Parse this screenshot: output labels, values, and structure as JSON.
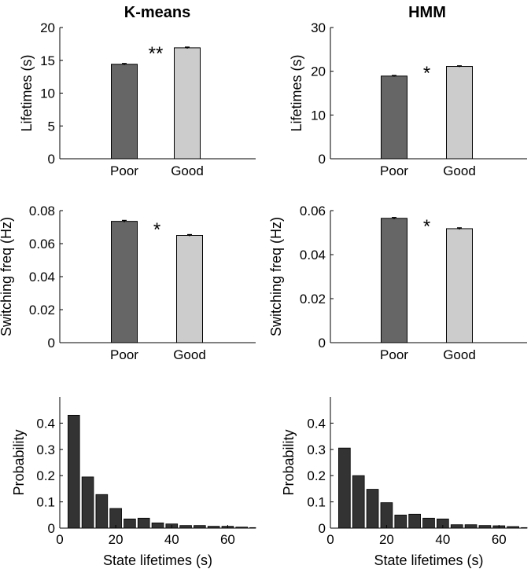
{
  "column_titles": [
    "K-means",
    "HMM"
  ],
  "colors": {
    "poor": "#666666",
    "good": "#cccccc",
    "hist": "#333333",
    "edge": "#000000"
  },
  "chart_data": [
    {
      "type": "bar",
      "id": "kmeans-lifetimes",
      "categories": [
        "Poor",
        "Good"
      ],
      "values": [
        14.4,
        16.9
      ],
      "errors": [
        0.12,
        0.12
      ],
      "ylabel": "Lifetimes (s)",
      "ylim": [
        0,
        20
      ],
      "yticks": [
        0,
        5,
        10,
        15,
        20
      ],
      "significance": "**"
    },
    {
      "type": "bar",
      "id": "hmm-lifetimes",
      "categories": [
        "Poor",
        "Good"
      ],
      "values": [
        18.9,
        21.1
      ],
      "errors": [
        0.15,
        0.15
      ],
      "ylabel": "Lifetimes (s)",
      "ylim": [
        0,
        30
      ],
      "yticks": [
        0,
        10,
        20,
        30
      ],
      "significance": "*"
    },
    {
      "type": "bar",
      "id": "kmeans-switching",
      "categories": [
        "Poor",
        "Good"
      ],
      "values": [
        0.0735,
        0.065
      ],
      "errors": [
        0.0006,
        0.0005
      ],
      "ylabel": "Switching freq (Hz)",
      "ylim": [
        0,
        0.08
      ],
      "yticks": [
        0,
        0.02,
        0.04,
        0.06,
        0.08
      ],
      "significance": "*"
    },
    {
      "type": "bar",
      "id": "hmm-switching",
      "categories": [
        "Poor",
        "Good"
      ],
      "values": [
        0.0565,
        0.0518
      ],
      "errors": [
        0.0004,
        0.0004
      ],
      "ylabel": "Switching freq (Hz)",
      "ylim": [
        0,
        0.06
      ],
      "yticks": [
        0,
        0.02,
        0.04,
        0.06
      ],
      "significance": "*"
    },
    {
      "type": "bar",
      "id": "kmeans-histogram",
      "x": [
        5,
        10,
        15,
        20,
        25,
        30,
        35,
        40,
        45,
        50,
        55,
        60,
        65,
        70
      ],
      "values": [
        0.43,
        0.195,
        0.128,
        0.075,
        0.035,
        0.038,
        0.02,
        0.016,
        0.01,
        0.01,
        0.007,
        0.007,
        0.004,
        0.002
      ],
      "xlabel": "State lifetimes (s)",
      "ylabel": "Probability",
      "xlim": [
        0,
        70
      ],
      "xticks": [
        0,
        20,
        40,
        60
      ],
      "ylim": [
        0,
        0.5
      ],
      "yticks": [
        0,
        0.1,
        0.2,
        0.3,
        0.4
      ]
    },
    {
      "type": "bar",
      "id": "hmm-histogram",
      "x": [
        5,
        10,
        15,
        20,
        25,
        30,
        35,
        40,
        45,
        50,
        55,
        60,
        65,
        70
      ],
      "values": [
        0.305,
        0.2,
        0.148,
        0.097,
        0.05,
        0.053,
        0.038,
        0.035,
        0.013,
        0.013,
        0.01,
        0.009,
        0.006,
        0.002
      ],
      "xlabel": "State lifetimes (s)",
      "ylabel": "Probability",
      "xlim": [
        0,
        70
      ],
      "xticks": [
        0,
        20,
        40,
        60
      ],
      "ylim": [
        0,
        0.5
      ],
      "yticks": [
        0,
        0.1,
        0.2,
        0.3,
        0.4
      ]
    }
  ]
}
